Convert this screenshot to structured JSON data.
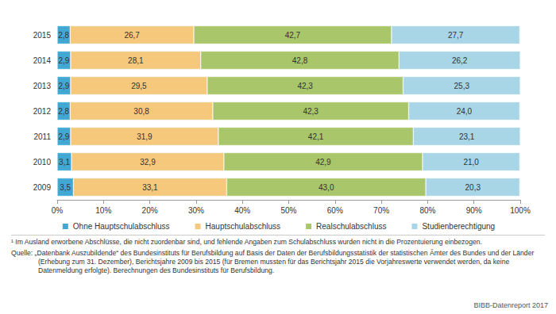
{
  "chart_data": {
    "type": "bar",
    "orientation": "horizontal",
    "stacked": true,
    "data_labels": true,
    "grid": false,
    "legend": "bottom",
    "categories": [
      "2015",
      "2014",
      "2013",
      "2012",
      "2011",
      "2010",
      "2009"
    ],
    "series": [
      {
        "name": "Ohne Hauptschulabschluss",
        "color": "#43a7d4",
        "values": [
          2.8,
          2.9,
          2.9,
          2.8,
          2.9,
          3.1,
          3.5
        ],
        "value_labels": [
          "2,8",
          "2,9",
          "2,9",
          "2,8",
          "2,9",
          "3,1",
          "3,5"
        ]
      },
      {
        "name": "Hauptschulabschluss",
        "color": "#f6c87c",
        "values": [
          26.7,
          28.1,
          29.5,
          30.8,
          31.9,
          32.9,
          33.1
        ],
        "value_labels": [
          "26,7",
          "28,1",
          "29,5",
          "30,8",
          "31,9",
          "32,9",
          "33,1"
        ]
      },
      {
        "name": "Realschulabschluss",
        "color": "#a9c66a",
        "values": [
          42.7,
          42.8,
          42.3,
          42.3,
          42.1,
          42.9,
          43.0
        ],
        "value_labels": [
          "42,7",
          "42,8",
          "42,3",
          "42,3",
          "42,1",
          "42,9",
          "43,0"
        ]
      },
      {
        "name": "Studienberechtigung",
        "color": "#a8d6e6",
        "values": [
          27.7,
          26.2,
          25.3,
          24.0,
          23.1,
          21.0,
          20.3
        ],
        "value_labels": [
          "27,7",
          "26,2",
          "25,3",
          "24,0",
          "23,1",
          "21,0",
          "20,3"
        ]
      }
    ],
    "xlim": [
      0,
      100
    ],
    "xticks": [
      {
        "value": 0,
        "label": "0%"
      },
      {
        "value": 10,
        "label": "10%"
      },
      {
        "value": 20,
        "label": "20%"
      },
      {
        "value": 30,
        "label": "30%"
      },
      {
        "value": 40,
        "label": "40%"
      },
      {
        "value": 50,
        "label": "50%"
      },
      {
        "value": 60,
        "label": "60%"
      },
      {
        "value": 70,
        "label": "70%"
      },
      {
        "value": 80,
        "label": "80%"
      },
      {
        "value": 90,
        "label": "90%"
      },
      {
        "value": 100,
        "label": "100%"
      }
    ],
    "annotations": [
      "¹ Im Ausland erworbene Abschlüsse, die nicht zuordenbar sind, und fehlende Angaben zum Schulabschluss wurden nicht in die Prozentuierung einbezogen.",
      "Quelle: „Datenbank Auszubildende“ des Bundesinstituts für Berufsbildung auf Basis der Daten der Berufsbildungsstatistik der statistischen Ämter des Bundes und der Länder (Erhebung zum 31. Dezember), Berichtsjahre 2009 bis 2015 (für Bremen mussten für das Berichtsjahr 2015 die Vorjahreswerte verwendet werden, da keine Datenmeldung erfolgte). Berechnungen des Bundesinstituts für Berufsbildung.",
      "BIBB-Datenreport 2017"
    ]
  }
}
